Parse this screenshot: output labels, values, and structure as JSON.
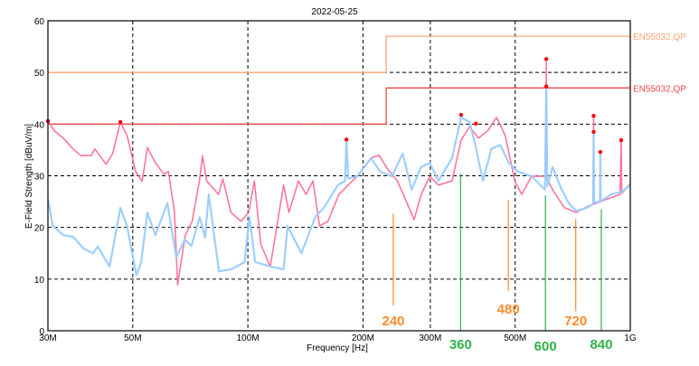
{
  "chart_data": {
    "type": "line",
    "title": "2022-05-25",
    "xlabel": "Frequency [Hz]",
    "ylabel": "E-Field Strength [dBuV/m]",
    "x_scale": "log",
    "xlim_hz": [
      30000000,
      1000000000
    ],
    "ylim": [
      0,
      60
    ],
    "grid": true,
    "x_ticks": [
      {
        "value": 30000000,
        "label": "30M"
      },
      {
        "value": 50000000,
        "label": "50M"
      },
      {
        "value": 100000000,
        "label": "100M"
      },
      {
        "value": 200000000,
        "label": "200M"
      },
      {
        "value": 300000000,
        "label": "300M"
      },
      {
        "value": 500000000,
        "label": "500M"
      },
      {
        "value": 1000000000,
        "label": "1G"
      }
    ],
    "y_ticks": [
      0,
      10,
      20,
      30,
      40,
      50,
      60
    ],
    "limits": [
      {
        "name": "EN55032,QP",
        "color": "#ffa577",
        "points": [
          [
            30,
            50
          ],
          [
            230,
            50
          ],
          [
            230,
            57
          ],
          [
            1000,
            57
          ]
        ]
      },
      {
        "name": "EN55032,QP",
        "color": "#f04848",
        "points": [
          [
            30,
            40
          ],
          [
            230,
            40
          ],
          [
            230,
            47
          ],
          [
            1000,
            47
          ]
        ]
      }
    ],
    "series_units_x": "MHz",
    "series": [
      {
        "color": "#ff6f9a",
        "points": [
          [
            30,
            40.6
          ],
          [
            31.2,
            38.7
          ],
          [
            32.9,
            37.3
          ],
          [
            34.9,
            35.2
          ],
          [
            36.6,
            33.9
          ],
          [
            38.9,
            33.9
          ],
          [
            39.8,
            35.2
          ],
          [
            42.6,
            32.2
          ],
          [
            44.3,
            34.3
          ],
          [
            46.4,
            40.4
          ],
          [
            48.3,
            37.8
          ],
          [
            50.9,
            30.8
          ],
          [
            52.9,
            28.9
          ],
          [
            54.6,
            35.5
          ],
          [
            57.3,
            32.5
          ],
          [
            60.3,
            30.3
          ],
          [
            62,
            30.8
          ],
          [
            64.3,
            22.9
          ],
          [
            65.5,
            8.9
          ],
          [
            68.6,
            18.5
          ],
          [
            71.5,
            21.2
          ],
          [
            74.7,
            29.0
          ],
          [
            76.1,
            33.9
          ],
          [
            78,
            29.0
          ],
          [
            83.8,
            26.4
          ],
          [
            86,
            29.4
          ],
          [
            90.3,
            22.9
          ],
          [
            95.9,
            21.2
          ],
          [
            100.5,
            22.9
          ],
          [
            104,
            29.0
          ],
          [
            108,
            16.8
          ],
          [
            114.4,
            12.4
          ],
          [
            117,
            16.8
          ],
          [
            124,
            28.2
          ],
          [
            128,
            22.9
          ],
          [
            135.6,
            29.0
          ],
          [
            142,
            26.4
          ],
          [
            148,
            29.0
          ],
          [
            154,
            20.3
          ],
          [
            162,
            21.2
          ],
          [
            173,
            26.4
          ],
          [
            183,
            28.2
          ],
          [
            193,
            29.9
          ],
          [
            210,
            33.4
          ],
          [
            220,
            34.0
          ],
          [
            232,
            31.3
          ],
          [
            246,
            29.0
          ],
          [
            264,
            23.8
          ],
          [
            272,
            21.5
          ],
          [
            284,
            26.4
          ],
          [
            299,
            29.9
          ],
          [
            315,
            28.2
          ],
          [
            342,
            29.0
          ],
          [
            361,
            36.9
          ],
          [
            380,
            39.5
          ],
          [
            401,
            37.3
          ],
          [
            424,
            38.7
          ],
          [
            447,
            41.3
          ],
          [
            471,
            37.8
          ],
          [
            499,
            29.0
          ],
          [
            520,
            26.4
          ],
          [
            552,
            29.9
          ],
          [
            584,
            29.9
          ],
          [
            601,
            29.9
          ],
          [
            603,
            52.6
          ],
          [
            605,
            29.5
          ],
          [
            630,
            27.0
          ],
          [
            673,
            23.8
          ],
          [
            722,
            22.9
          ],
          [
            760,
            23.8
          ],
          [
            800,
            24.5
          ],
          [
            802,
            41.6
          ],
          [
            804,
            24.5
          ],
          [
            850,
            25.2
          ],
          [
            940,
            26.4
          ],
          [
            947,
            36.9
          ],
          [
            950,
            26.6
          ],
          [
            1000,
            28.5
          ]
        ]
      },
      {
        "color": "#99ccff",
        "points": [
          [
            30,
            25.5
          ],
          [
            30.9,
            20.3
          ],
          [
            32.9,
            18.5
          ],
          [
            34.9,
            18.2
          ],
          [
            37.2,
            15.9
          ],
          [
            39.4,
            15.0
          ],
          [
            40.5,
            16.3
          ],
          [
            43.5,
            12.4
          ],
          [
            46.4,
            23.8
          ],
          [
            48.3,
            20.3
          ],
          [
            51.1,
            10.7
          ],
          [
            52.6,
            13.3
          ],
          [
            54.6,
            22.9
          ],
          [
            57.3,
            18.5
          ],
          [
            61.6,
            24.7
          ],
          [
            65,
            14.2
          ],
          [
            68.4,
            17.7
          ],
          [
            71.2,
            16.4
          ],
          [
            74.8,
            22.0
          ],
          [
            77.3,
            18.1
          ],
          [
            79,
            26.4
          ],
          [
            84,
            11.5
          ],
          [
            90.5,
            11.9
          ],
          [
            98,
            13.3
          ],
          [
            101,
            22.0
          ],
          [
            104.5,
            13.3
          ],
          [
            115,
            12.4
          ],
          [
            124,
            11.9
          ],
          [
            127,
            20.3
          ],
          [
            138,
            15.0
          ],
          [
            150,
            22.0
          ],
          [
            158,
            23.8
          ],
          [
            172,
            28.2
          ],
          [
            179.5,
            29.0
          ],
          [
            181,
            37.0
          ],
          [
            183,
            29.5
          ],
          [
            193,
            29.9
          ],
          [
            210,
            33.4
          ],
          [
            222,
            30.8
          ],
          [
            238,
            29.9
          ],
          [
            254,
            34.3
          ],
          [
            268,
            27.3
          ],
          [
            284,
            31.7
          ],
          [
            299,
            32.5
          ],
          [
            315,
            29.0
          ],
          [
            342,
            33.4
          ],
          [
            361,
            41.3
          ],
          [
            380,
            40.4
          ],
          [
            393,
            36.0
          ],
          [
            412,
            29.0
          ],
          [
            433,
            35.2
          ],
          [
            457,
            36.0
          ],
          [
            481,
            32.5
          ],
          [
            508,
            30.8
          ],
          [
            552,
            29.9
          ],
          [
            598,
            27.3
          ],
          [
            603,
            47.3
          ],
          [
            607,
            28.0
          ],
          [
            626,
            31.7
          ],
          [
            660,
            27.5
          ],
          [
            690,
            24.7
          ],
          [
            722,
            23.2
          ],
          [
            770,
            23.8
          ],
          [
            800,
            24.5
          ],
          [
            802,
            38.5
          ],
          [
            804,
            24.8
          ],
          [
            833,
            25.0
          ],
          [
            835,
            34.6
          ],
          [
            837,
            25.0
          ],
          [
            890,
            26.4
          ],
          [
            950,
            26.9
          ],
          [
            1000,
            28.2
          ]
        ]
      }
    ],
    "markers_mhz_db": [
      [
        30,
        40.6
      ],
      [
        46.4,
        40.4
      ],
      [
        181,
        37.0
      ],
      [
        361,
        41.8
      ],
      [
        395,
        40.1
      ],
      [
        603,
        52.6
      ],
      [
        603,
        47.3
      ],
      [
        802,
        41.6
      ],
      [
        802,
        38.5
      ],
      [
        835,
        34.6
      ],
      [
        947,
        36.9
      ]
    ],
    "annotations": [
      {
        "label": "240",
        "color": "#ff8a2a"
      },
      {
        "label": "360",
        "color": "#2db34a"
      },
      {
        "label": "480",
        "color": "#ff8a2a"
      },
      {
        "label": "600",
        "color": "#2db34a"
      },
      {
        "label": "720",
        "color": "#ff8a2a"
      },
      {
        "label": "840",
        "color": "#2db34a"
      }
    ]
  }
}
